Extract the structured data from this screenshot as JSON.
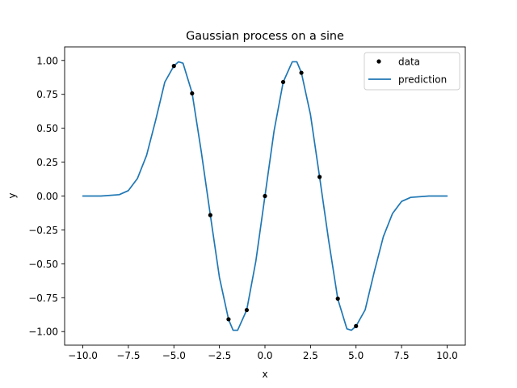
{
  "chart_data": {
    "type": "line",
    "title": "Gaussian process on a sine",
    "xlabel": "x",
    "ylabel": "y",
    "xlim": [
      -11.0,
      11.0
    ],
    "ylim": [
      -1.1,
      1.1
    ],
    "xticks": [
      -10.0,
      -7.5,
      -5.0,
      -2.5,
      0.0,
      2.5,
      5.0,
      7.5,
      10.0
    ],
    "xtick_labels": [
      "−10.0",
      "−7.5",
      "−5.0",
      "−2.5",
      "0.0",
      "2.5",
      "5.0",
      "7.5",
      "10.0"
    ],
    "yticks": [
      -1.0,
      -0.75,
      -0.5,
      -0.25,
      0.0,
      0.25,
      0.5,
      0.75,
      1.0
    ],
    "ytick_labels": [
      "−1.00",
      "−0.75",
      "−0.50",
      "−0.25",
      "0.00",
      "0.25",
      "0.50",
      "0.75",
      "1.00"
    ],
    "grid": false,
    "legend_position": "top-right",
    "series": [
      {
        "name": "data",
        "kind": "scatter",
        "color": "#000000",
        "x": [
          -5,
          -4,
          -3,
          -2,
          -1,
          0,
          1,
          2,
          3,
          4,
          5
        ],
        "y": [
          0.959,
          0.757,
          -0.141,
          -0.909,
          -0.841,
          0.0,
          0.841,
          0.909,
          0.141,
          -0.757,
          -0.959
        ]
      },
      {
        "name": "prediction",
        "kind": "line",
        "color": "#1f77b4",
        "x": [
          -10,
          -9,
          -8,
          -7.5,
          -7,
          -6.5,
          -6,
          -5.5,
          -5,
          -4.75,
          -4.5,
          -4,
          -3.5,
          -3,
          -2.5,
          -2,
          -1.75,
          -1.5,
          -1,
          -0.5,
          0,
          0.5,
          1,
          1.5,
          1.75,
          2,
          2.5,
          3,
          3.5,
          4,
          4.5,
          4.75,
          5,
          5.5,
          6,
          6.5,
          7,
          7.5,
          8,
          9,
          10
        ],
        "y": [
          0.0,
          0.0,
          0.01,
          0.04,
          0.13,
          0.3,
          0.56,
          0.84,
          0.96,
          0.99,
          0.98,
          0.76,
          0.33,
          -0.14,
          -0.6,
          -0.91,
          -0.99,
          -0.99,
          -0.84,
          -0.48,
          0.0,
          0.48,
          0.84,
          0.99,
          0.99,
          0.91,
          0.6,
          0.14,
          -0.33,
          -0.76,
          -0.98,
          -0.99,
          -0.96,
          -0.84,
          -0.56,
          -0.3,
          -0.13,
          -0.04,
          -0.01,
          0.0,
          0.0
        ]
      }
    ]
  }
}
